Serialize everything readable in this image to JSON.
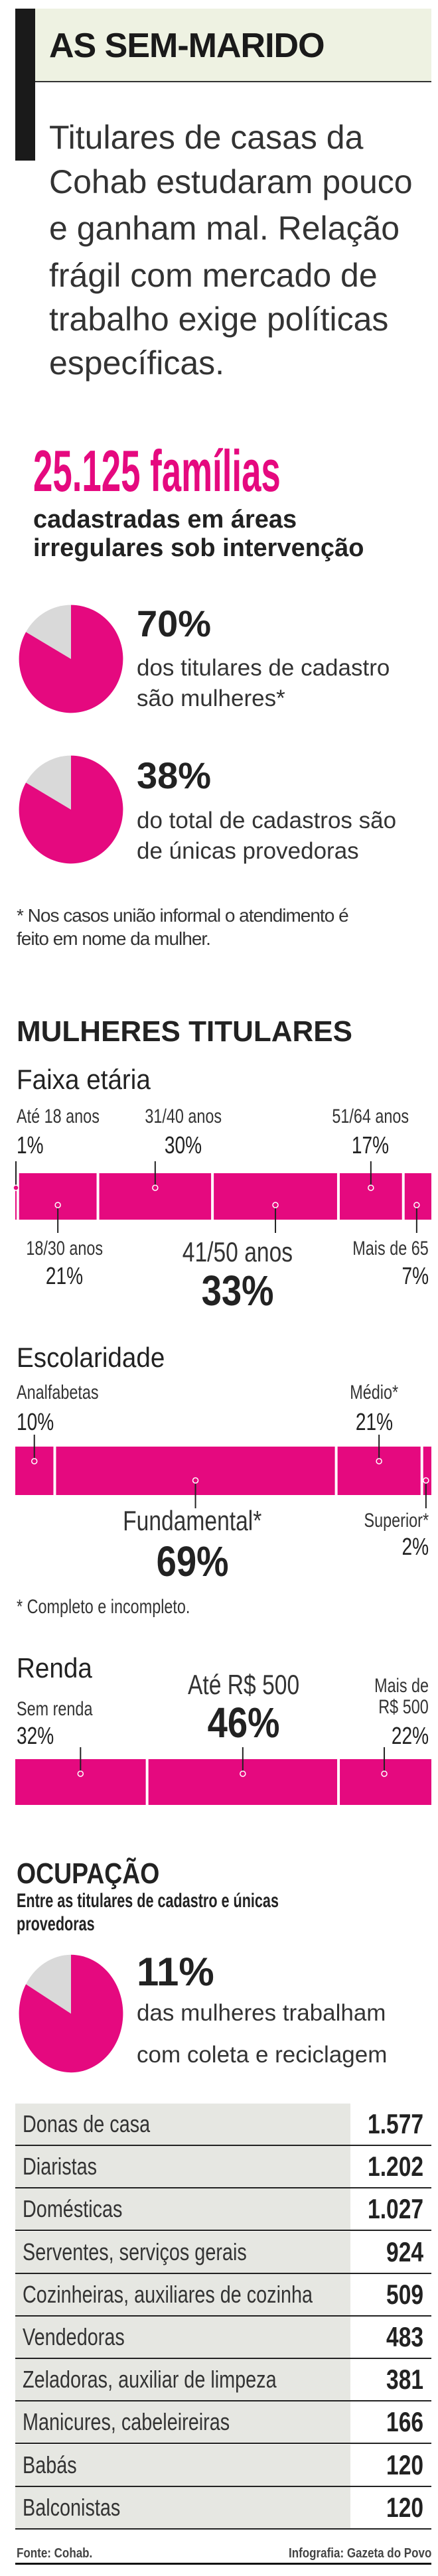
{
  "header": {
    "title": "AS SEM-MARIDO",
    "lede": [
      "Titulares de casas da",
      "Cohab estudaram pouco",
      "e ganham mal. Relação",
      "frágil com mercado de",
      "trabalho exige políticas",
      "específicas."
    ]
  },
  "headline": {
    "number": "25.125 famílias",
    "sub": [
      "cadastradas em áreas",
      "irregulares sob intervenção"
    ]
  },
  "stats": [
    {
      "value": "70%",
      "text": [
        "dos titulares de cadastro",
        "são mulheres*"
      ]
    },
    {
      "value": "38%",
      "text": [
        "do total de cadastros são",
        "de únicas provedoras"
      ]
    }
  ],
  "footnote1": [
    "* Nos casos união informal o atendimento é",
    "feito em nome da mulher."
  ],
  "section1": {
    "title": "MULHERES TITULARES"
  },
  "colors": {
    "accent": "#e5097f",
    "pie_rest": "#d9d9d9",
    "header_bg": "#eef2e2",
    "table_bg": "#e6e7e2"
  },
  "chart_data": [
    {
      "type": "bar",
      "stacked": true,
      "title": "Faixa etária",
      "categories": [
        "Até 18 anos",
        "18/30 anos",
        "31/40 anos",
        "41/50 anos",
        "51/64 anos",
        "Mais de 65"
      ],
      "values": [
        1,
        21,
        30,
        33,
        17,
        7
      ],
      "labels": [
        "1%",
        "21%",
        "30%",
        "33%",
        "17%",
        "7%"
      ],
      "label_position": [
        "above",
        "below",
        "above",
        "below",
        "above",
        "below"
      ]
    },
    {
      "type": "bar",
      "stacked": true,
      "title": "Escolaridade",
      "categories": [
        "Analfabetas",
        "Fundamental*",
        "Médio*",
        "Superior*"
      ],
      "values": [
        10,
        69,
        21,
        2
      ],
      "labels": [
        "10%",
        "69%",
        "21%",
        "2%"
      ],
      "label_position": [
        "above",
        "below",
        "above",
        "below"
      ],
      "note": "* Completo e incompleto."
    },
    {
      "type": "bar",
      "stacked": true,
      "title": "Renda",
      "categories": [
        "Sem renda",
        "Até R$ 500",
        "Mais de R$ 500"
      ],
      "category_lines": [
        [
          "Sem renda"
        ],
        [
          "Até R$ 500"
        ],
        [
          "Mais de",
          "R$ 500"
        ]
      ],
      "values": [
        32,
        46,
        22
      ],
      "labels": [
        "32%",
        "46%",
        "22%"
      ],
      "label_position": [
        "above",
        "above",
        "above"
      ]
    },
    {
      "type": "table",
      "title": "OCUPAÇÃO",
      "subtitle": [
        "Entre as titulares de cadastro e únicas",
        "provedoras"
      ],
      "highlight": {
        "value": "11%",
        "text": [
          "das mulheres trabalham",
          "com coleta e reciclagem"
        ]
      },
      "rows": [
        {
          "label": "Donas de casa",
          "value": "1.577"
        },
        {
          "label": "Diaristas",
          "value": "1.202"
        },
        {
          "label": "Domésticas",
          "value": "1.027"
        },
        {
          "label": "Serventes, serviços gerais",
          "value": "924"
        },
        {
          "label": "Cozinheiras, auxiliares de cozinha",
          "value": "509"
        },
        {
          "label": "Vendedoras",
          "value": "483"
        },
        {
          "label": "Zeladoras, auxiliar de limpeza",
          "value": "381"
        },
        {
          "label": "Manicures, cabeleireiras",
          "value": "166"
        },
        {
          "label": "Babás",
          "value": "120"
        },
        {
          "label": "Balconistas",
          "value": "120"
        }
      ]
    }
  ],
  "footer": {
    "source": "Fonte: Cohab.",
    "credit": "Infografia: Gazeta do Povo"
  }
}
